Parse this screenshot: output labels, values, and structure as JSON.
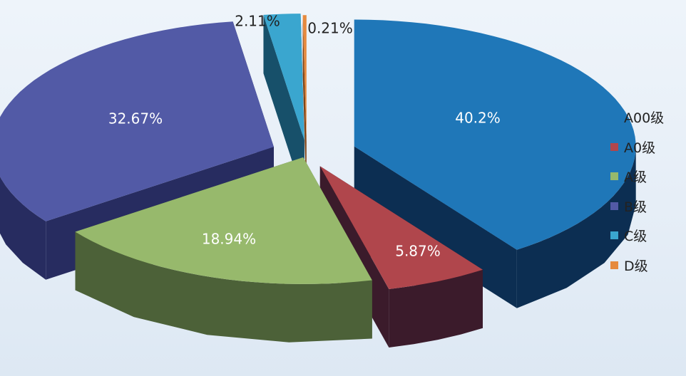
{
  "chart_data": {
    "type": "pie",
    "style": "3d-exploded",
    "categories": [
      "A00级",
      "A0级",
      "A级",
      "B级",
      "C级",
      "D级"
    ],
    "values": [
      40.2,
      5.87,
      18.94,
      32.67,
      2.11,
      0.21
    ],
    "labels": [
      "40.2%",
      "5.87%",
      "18.94%",
      "32.67%",
      "2.11%",
      "0.21%"
    ],
    "colors": [
      "#1f77b8",
      "#b0464c",
      "#97b96c",
      "#525aa6",
      "#3aa6cf",
      "#e68a3e"
    ],
    "side_colors": [
      "#0c2e52",
      "#3b1b2b",
      "#4c6138",
      "#272c60",
      "#17506a",
      "#7e4519"
    ],
    "label_colors": [
      "#ffffff",
      "#ffffff",
      "#ffffff",
      "#ffffff",
      "#222222",
      "#222222"
    ],
    "legend_position": "right",
    "title": ""
  }
}
